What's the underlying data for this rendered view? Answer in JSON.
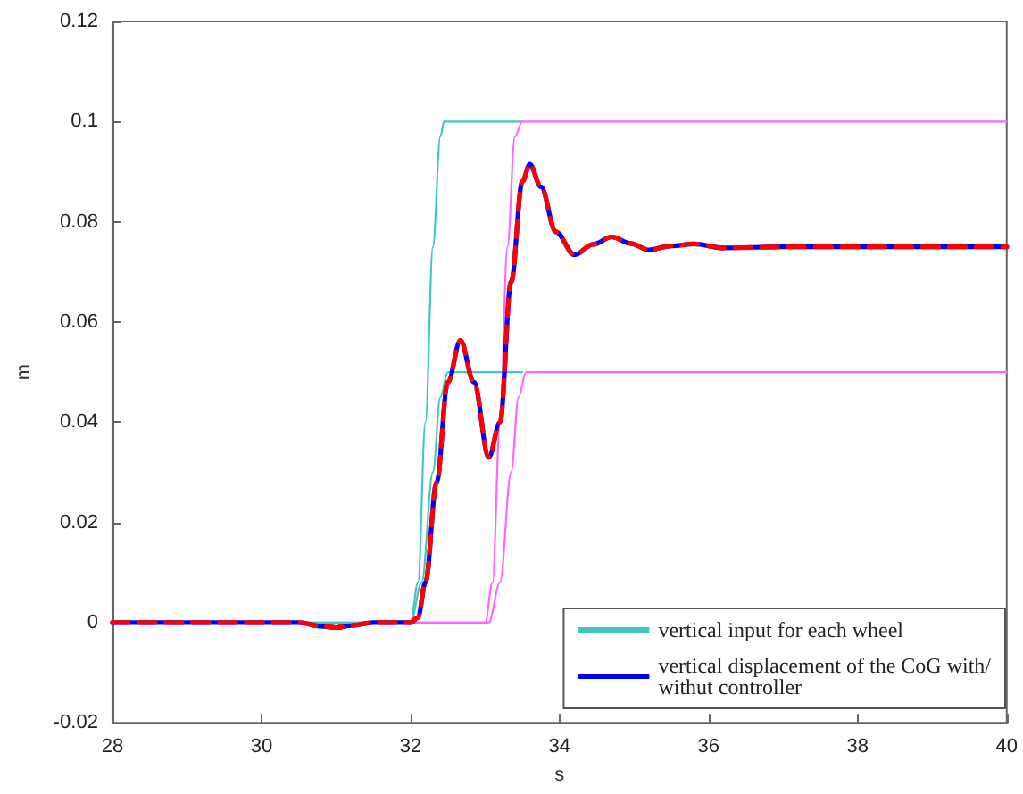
{
  "chart_data": {
    "type": "line",
    "xlabel": "s",
    "ylabel": "m",
    "xlim": [
      28,
      40
    ],
    "ylim": [
      -0.02,
      0.12
    ],
    "xticks": [
      28,
      30,
      32,
      34,
      36,
      38,
      40
    ],
    "yticks": [
      -0.02,
      0,
      0.02,
      0.04,
      0.06,
      0.08,
      0.1,
      0.12
    ],
    "grid": false,
    "legend": "bottom right",
    "marker": "none",
    "series": [
      {
        "name": "vertical input for each wheel",
        "color": "#40c8c0",
        "line_style": "solid",
        "x": [
          28,
          32,
          32.1,
          32.2,
          32.3,
          32.4,
          32.45,
          33.5
        ],
        "values": [
          0,
          0,
          0.008,
          0.04,
          0.075,
          0.097,
          0.1,
          0.1
        ]
      },
      {
        "color": "#40c8c0",
        "line_style": "solid",
        "x": [
          28,
          32,
          32.15,
          32.3,
          32.4,
          32.5,
          33.5
        ],
        "values": [
          0,
          0,
          0.008,
          0.03,
          0.045,
          0.05,
          0.05
        ]
      },
      {
        "color": "#ff66ff",
        "line_style": "solid",
        "x": [
          32,
          33,
          33.1,
          33.2,
          33.3,
          33.4,
          33.5,
          40
        ],
        "values": [
          0,
          0,
          0.008,
          0.04,
          0.075,
          0.097,
          0.1,
          0.1
        ]
      },
      {
        "color": "#ff66ff",
        "line_style": "solid",
        "x": [
          32,
          33.05,
          33.2,
          33.35,
          33.45,
          33.55,
          40
        ],
        "values": [
          0,
          0,
          0.008,
          0.03,
          0.045,
          0.05,
          0.05
        ]
      },
      {
        "name": "vertical displacement of the CoG with/withut controller",
        "color": "#0000ff",
        "line_style": "solid",
        "x": [
          28,
          30.5,
          30.8,
          31,
          31.2,
          31.5,
          32,
          32.1,
          32.2,
          32.35,
          32.5,
          32.67,
          32.85,
          33.05,
          33.2,
          33.35,
          33.5,
          33.6,
          33.75,
          33.95,
          34.2,
          34.45,
          34.7,
          34.95,
          35.2,
          35.5,
          35.8,
          36.2,
          37,
          40
        ],
        "values": [
          0,
          0,
          -0.0007,
          -0.001,
          -0.0006,
          0,
          0,
          0.001,
          0.008,
          0.028,
          0.048,
          0.0563,
          0.048,
          0.033,
          0.04,
          0.068,
          0.088,
          0.0915,
          0.087,
          0.078,
          0.0734,
          0.0755,
          0.077,
          0.0757,
          0.0744,
          0.0752,
          0.0756,
          0.0748,
          0.075,
          0.075
        ]
      },
      {
        "color": "#ff0000",
        "line_style": "dashed",
        "x": [
          28,
          30.5,
          30.8,
          31,
          31.2,
          31.5,
          32,
          32.1,
          32.2,
          32.35,
          32.5,
          32.67,
          32.85,
          33.05,
          33.2,
          33.35,
          33.5,
          33.6,
          33.75,
          33.95,
          34.2,
          34.45,
          34.7,
          34.95,
          35.2,
          35.5,
          35.8,
          36.2,
          37,
          40
        ],
        "values": [
          0,
          0,
          -0.0007,
          -0.001,
          -0.0006,
          0,
          0,
          0.001,
          0.008,
          0.028,
          0.048,
          0.0563,
          0.048,
          0.033,
          0.04,
          0.068,
          0.088,
          0.0915,
          0.087,
          0.078,
          0.0734,
          0.0755,
          0.077,
          0.0757,
          0.0744,
          0.0752,
          0.0756,
          0.0748,
          0.075,
          0.075
        ]
      }
    ]
  }
}
